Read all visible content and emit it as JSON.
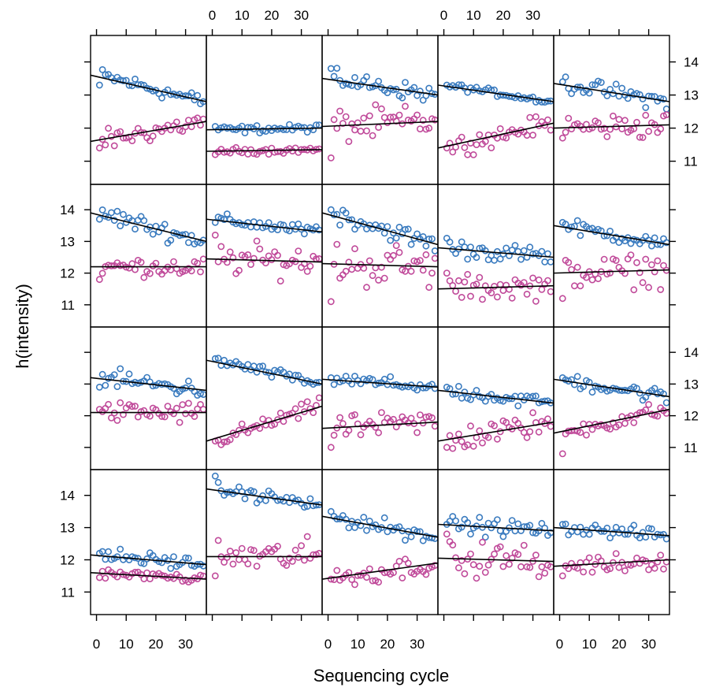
{
  "chart_data": {
    "type": "scatter",
    "layout": "lattice",
    "xlabel": "Sequencing cycle",
    "ylabel": "h(intensity)",
    "xlim": [
      -2,
      37
    ],
    "ylim": [
      10.3,
      14.8
    ],
    "x_ticks": [
      0,
      10,
      20,
      30
    ],
    "y_ticks": [
      11,
      12,
      13,
      14
    ],
    "grid": false,
    "legend": "none",
    "colors": {
      "series_a": "#3a7bbf",
      "series_b": "#c04a9a",
      "fit_line": "#000000",
      "frame": "#000000"
    },
    "series_names": [
      "series_a",
      "series_b"
    ],
    "panels": [
      {
        "row": 1,
        "col": 1,
        "series_a": {
          "start": 13.6,
          "end": 12.8,
          "noise": 0.16,
          "first": 13.3
        },
        "series_b": {
          "start": 11.6,
          "end": 12.2,
          "noise": 0.22,
          "first": 11.4
        }
      },
      {
        "row": 1,
        "col": 2,
        "series_a": {
          "start": 11.95,
          "end": 12.0,
          "noise": 0.08,
          "first": 12.05
        },
        "series_b": {
          "start": 11.3,
          "end": 11.35,
          "noise": 0.07,
          "first": 11.2
        }
      },
      {
        "row": 1,
        "col": 3,
        "series_a": {
          "start": 13.5,
          "end": 13.0,
          "noise": 0.18,
          "first": 13.8
        },
        "series_b": {
          "start": 12.05,
          "end": 12.2,
          "noise": 0.35,
          "first": 11.1
        }
      },
      {
        "row": 1,
        "col": 4,
        "series_a": {
          "start": 13.3,
          "end": 12.8,
          "noise": 0.07,
          "first": 13.3
        },
        "series_b": {
          "start": 11.4,
          "end": 12.15,
          "noise": 0.2,
          "first": 11.4
        }
      },
      {
        "row": 1,
        "col": 5,
        "series_a": {
          "start": 13.35,
          "end": 12.8,
          "noise": 0.18,
          "first": 13.4
        },
        "series_b": {
          "start": 12.0,
          "end": 12.1,
          "noise": 0.28,
          "first": 11.7
        }
      },
      {
        "row": 2,
        "col": 1,
        "series_a": {
          "start": 13.9,
          "end": 13.0,
          "noise": 0.2,
          "first": 13.7
        },
        "series_b": {
          "start": 12.2,
          "end": 12.2,
          "noise": 0.2,
          "first": 11.8
        }
      },
      {
        "row": 2,
        "col": 2,
        "series_a": {
          "start": 13.7,
          "end": 13.3,
          "noise": 0.13,
          "first": 13.6
        },
        "series_b": {
          "start": 12.45,
          "end": 12.35,
          "noise": 0.35,
          "first": 13.2
        }
      },
      {
        "row": 2,
        "col": 3,
        "series_a": {
          "start": 13.9,
          "end": 12.9,
          "noise": 0.2,
          "first": 14.0
        },
        "series_b": {
          "start": 12.3,
          "end": 12.2,
          "noise": 0.5,
          "first": 11.1
        }
      },
      {
        "row": 2,
        "col": 4,
        "series_a": {
          "start": 12.8,
          "end": 12.5,
          "noise": 0.2,
          "first": 13.1
        },
        "series_b": {
          "start": 11.5,
          "end": 11.6,
          "noise": 0.28,
          "first": 12.0
        }
      },
      {
        "row": 2,
        "col": 5,
        "series_a": {
          "start": 13.5,
          "end": 12.9,
          "noise": 0.16,
          "first": 13.6
        },
        "series_b": {
          "start": 12.0,
          "end": 12.1,
          "noise": 0.35,
          "first": 11.2
        }
      },
      {
        "row": 3,
        "col": 1,
        "series_a": {
          "start": 13.2,
          "end": 12.8,
          "noise": 0.2,
          "first": 12.9
        },
        "series_b": {
          "start": 12.1,
          "end": 12.1,
          "noise": 0.24,
          "first": 12.2
        }
      },
      {
        "row": 3,
        "col": 2,
        "series_a": {
          "start": 13.75,
          "end": 13.0,
          "noise": 0.12,
          "first": 13.8
        },
        "series_b": {
          "start": 11.2,
          "end": 12.3,
          "noise": 0.17,
          "first": 11.2
        }
      },
      {
        "row": 3,
        "col": 3,
        "series_a": {
          "start": 13.15,
          "end": 12.9,
          "noise": 0.15,
          "first": 13.2
        },
        "series_b": {
          "start": 11.6,
          "end": 11.8,
          "noise": 0.26,
          "first": 11.0
        }
      },
      {
        "row": 3,
        "col": 4,
        "series_a": {
          "start": 12.8,
          "end": 12.4,
          "noise": 0.18,
          "first": 12.9
        },
        "series_b": {
          "start": 11.2,
          "end": 11.8,
          "noise": 0.28,
          "first": 11.0
        }
      },
      {
        "row": 3,
        "col": 5,
        "series_a": {
          "start": 13.15,
          "end": 12.6,
          "noise": 0.18,
          "first": 13.2
        },
        "series_b": {
          "start": 11.45,
          "end": 12.2,
          "noise": 0.2,
          "first": 10.8
        }
      },
      {
        "row": 4,
        "col": 1,
        "series_a": {
          "start": 12.15,
          "end": 11.85,
          "noise": 0.16,
          "first": 12.2
        },
        "series_b": {
          "start": 11.6,
          "end": 11.4,
          "noise": 0.09,
          "first": 11.45
        }
      },
      {
        "row": 4,
        "col": 2,
        "series_a": {
          "start": 14.2,
          "end": 13.7,
          "noise": 0.14,
          "first": 14.6
        },
        "series_b": {
          "start": 12.1,
          "end": 12.1,
          "noise": 0.35,
          "first": 11.5
        }
      },
      {
        "row": 4,
        "col": 3,
        "series_a": {
          "start": 13.35,
          "end": 12.7,
          "noise": 0.17,
          "first": 13.5
        },
        "series_b": {
          "start": 11.4,
          "end": 11.9,
          "noise": 0.24,
          "first": 11.4
        }
      },
      {
        "row": 4,
        "col": 4,
        "series_a": {
          "start": 13.1,
          "end": 12.9,
          "noise": 0.18,
          "first": 13.1
        },
        "series_b": {
          "start": 12.05,
          "end": 11.95,
          "noise": 0.38,
          "first": 12.8
        }
      },
      {
        "row": 4,
        "col": 5,
        "series_a": {
          "start": 13.0,
          "end": 12.75,
          "noise": 0.14,
          "first": 13.1
        },
        "series_b": {
          "start": 11.8,
          "end": 12.0,
          "noise": 0.2,
          "first": 11.5
        }
      }
    ]
  }
}
